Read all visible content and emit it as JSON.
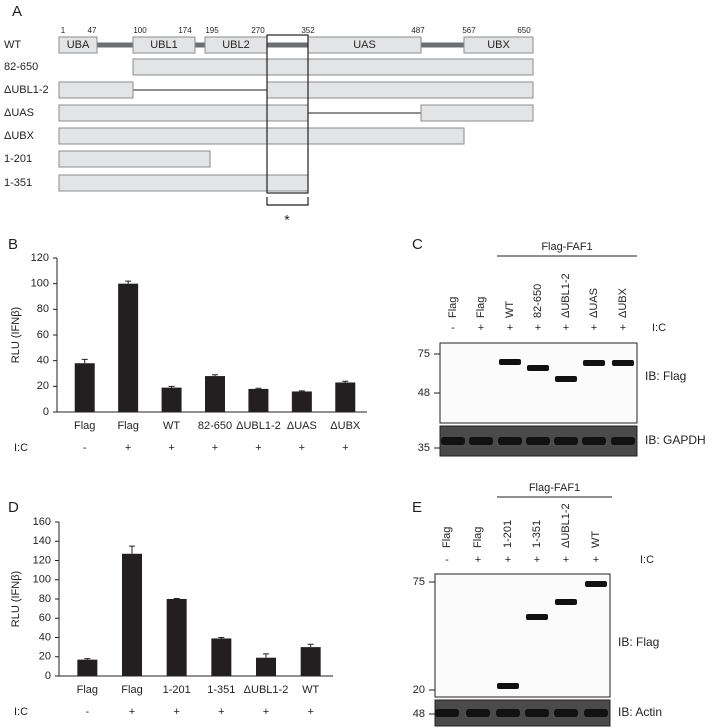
{
  "panel_a": {
    "label": "A",
    "positions": [
      1,
      47,
      100,
      174,
      195,
      270,
      352,
      487,
      567,
      650
    ],
    "domains": [
      "UBA",
      "UBL1",
      "UBL2",
      "UAS",
      "UBX"
    ],
    "constructs": [
      "WT",
      "82-650",
      "ΔUBL1-2",
      "ΔUAS",
      "ΔUBX",
      "1-201",
      "1-351"
    ],
    "marker": "*"
  },
  "chart_data": [
    {
      "type": "bar",
      "panel_label": "B",
      "y_label": "RLU (IFNβ)",
      "categories": [
        "Flag",
        "Flag",
        "WT",
        "82-650",
        "ΔUBL1-2",
        "ΔUAS",
        "ΔUBX"
      ],
      "values": [
        38,
        100,
        19,
        28,
        18,
        16,
        23
      ],
      "errors": [
        3,
        2,
        1,
        1,
        0.5,
        0.5,
        1
      ],
      "treatment_label": "I:C",
      "treatments": [
        "-",
        "+",
        "+",
        "+",
        "+",
        "+",
        "+"
      ],
      "ylim": [
        0,
        120
      ],
      "yticks": [
        0,
        20,
        40,
        60,
        80,
        100,
        120
      ],
      "color": "#231f20"
    },
    {
      "type": "bar",
      "panel_label": "D",
      "y_label": "RLU (IFNβ)",
      "categories": [
        "Flag",
        "Flag",
        "1-201",
        "1-351",
        "ΔUBL1-2",
        "WT"
      ],
      "values": [
        17,
        127,
        80,
        39,
        19,
        30
      ],
      "errors": [
        1,
        8,
        0.5,
        1,
        4,
        3
      ],
      "treatment_label": "I:C",
      "treatments": [
        "-",
        "+",
        "+",
        "+",
        "+",
        "+"
      ],
      "ylim": [
        0,
        160
      ],
      "yticks": [
        0,
        20,
        40,
        60,
        80,
        100,
        120,
        140,
        160
      ],
      "color": "#231f20"
    }
  ],
  "panel_c": {
    "label": "C",
    "header": "Flag-FAF1",
    "lanes": [
      "Flag",
      "Flag",
      "WT",
      "82-650",
      "ΔUBL1-2",
      "ΔUAS",
      "ΔUBX"
    ],
    "treatment_label": "I:C",
    "treatments": [
      "-",
      "+",
      "+",
      "+",
      "+",
      "+",
      "+"
    ],
    "markers": [
      75,
      48,
      35
    ],
    "blots": [
      "IB: Flag",
      "IB: GAPDH"
    ]
  },
  "panel_e": {
    "label": "E",
    "header": "Flag-FAF1",
    "lanes": [
      "Flag",
      "Flag",
      "1-201",
      "1-351",
      "ΔUBL1-2",
      "WT"
    ],
    "treatment_label": "I:C",
    "treatments": [
      "-",
      "+",
      "+",
      "+",
      "+",
      "+"
    ],
    "markers": [
      75,
      20,
      48
    ],
    "blots": [
      "IB: Flag",
      "IB: Actin"
    ]
  }
}
